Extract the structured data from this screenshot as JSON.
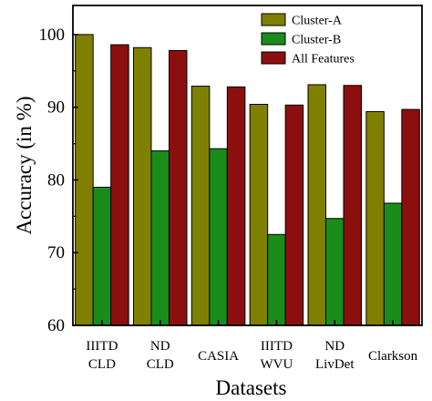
{
  "chart_data": {
    "type": "bar",
    "title": "",
    "xlabel": "Datasets",
    "ylabel": "Accuracy (in %)",
    "ylim": [
      60,
      104
    ],
    "yticks": [
      60,
      70,
      80,
      90,
      100
    ],
    "categories": [
      [
        "IIITD",
        "CLD"
      ],
      [
        "ND",
        "CLD"
      ],
      [
        "CASIA"
      ],
      [
        "IIITD",
        "WVU"
      ],
      [
        "ND",
        "LivDet"
      ],
      [
        "Clarkson"
      ]
    ],
    "series": [
      {
        "name": "Cluster-A",
        "color": "#808000",
        "values": [
          100.0,
          98.2,
          92.9,
          90.4,
          93.1,
          89.4
        ]
      },
      {
        "name": "Cluster-B",
        "color": "#1a8c1a",
        "values": [
          79.0,
          84.0,
          84.3,
          72.5,
          74.7,
          76.8
        ]
      },
      {
        "name": "All Features",
        "color": "#8c0f0f",
        "values": [
          98.6,
          97.8,
          92.8,
          90.3,
          93.0,
          89.7
        ]
      }
    ],
    "grid": false,
    "legend": "top-right"
  }
}
